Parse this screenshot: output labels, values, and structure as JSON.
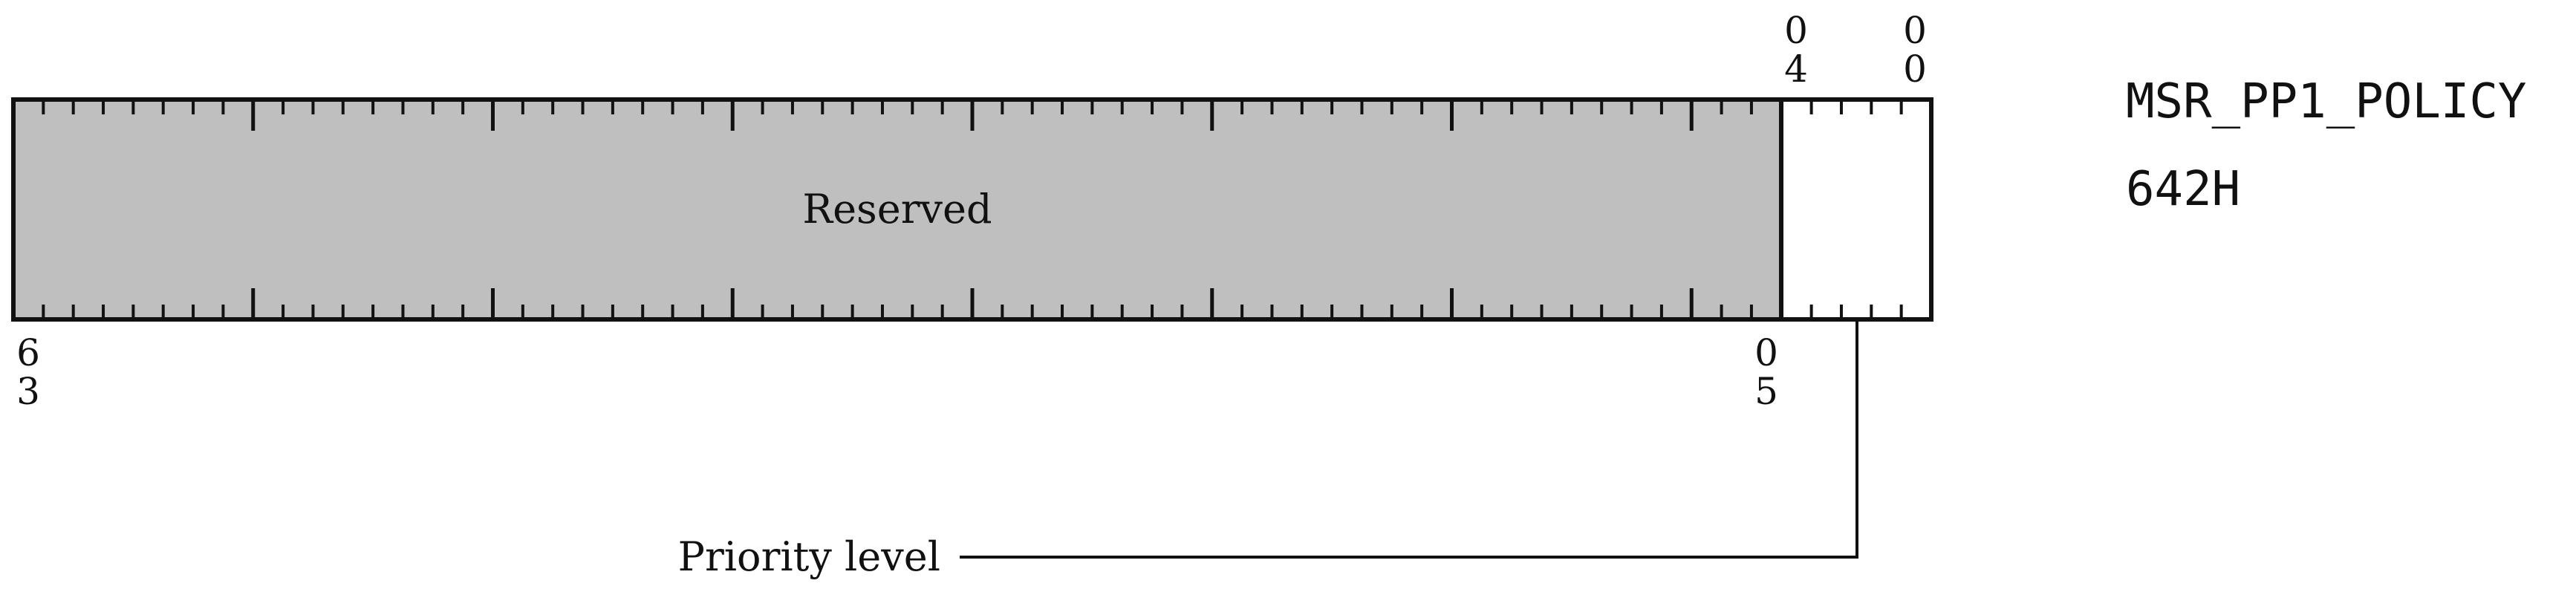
{
  "register": {
    "name": "MSR_PP1_POLICY",
    "address": "642H"
  },
  "fields": [
    {
      "label": "Reserved",
      "msb": 63,
      "lsb": 5,
      "reserved": true
    },
    {
      "label": "",
      "msb": 4,
      "lsb": 0,
      "reserved": false
    }
  ],
  "bit_labels": {
    "top_left_hi": "0",
    "top_left_lo": "4",
    "top_right_hi": "0",
    "top_right_lo": "0",
    "bottom_left_hi": "6",
    "bottom_left_lo": "3",
    "bottom_right_hi": "0",
    "bottom_right_lo": "5"
  },
  "callout": {
    "label": "Priority level"
  },
  "colors": {
    "reserved_fill": "#bfbfbf",
    "field_fill": "#ffffff",
    "stroke": "#111111"
  }
}
